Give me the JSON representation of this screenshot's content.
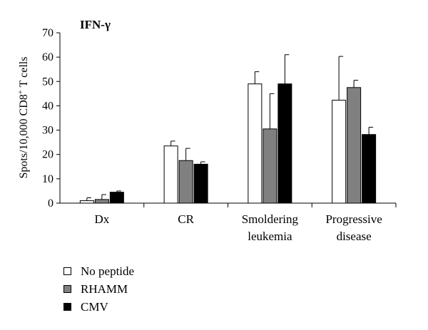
{
  "chart_data": {
    "type": "bar",
    "title": "IFN-γ",
    "ylabel": "Spots/10,000 CD8+ T cells",
    "ylabel_main": "Spots/10,000 CD8",
    "ylabel_sup": "+",
    "ylabel_tail": " T cells",
    "ylim": [
      0,
      70
    ],
    "yticks": [
      0,
      10,
      20,
      30,
      40,
      50,
      60,
      70
    ],
    "grid": false,
    "legend_position": "bottom-left",
    "categories": [
      [
        "Dx"
      ],
      [
        "CR"
      ],
      [
        "Smoldering",
        "leukemia"
      ],
      [
        "Progressive",
        "disease"
      ]
    ],
    "series": [
      {
        "name": "No peptide",
        "color": "#ffffff",
        "values": [
          1,
          23.5,
          49,
          42.3
        ],
        "errors": [
          1.2,
          2,
          5,
          18
        ]
      },
      {
        "name": "RHAMM",
        "color": "#808080",
        "values": [
          1.5,
          17.5,
          30.5,
          47.5
        ],
        "errors": [
          2,
          5,
          14.5,
          3
        ]
      },
      {
        "name": "CMV",
        "color": "#000000",
        "values": [
          4.5,
          16,
          49,
          28.2
        ],
        "errors": [
          0.5,
          1,
          12,
          3
        ]
      }
    ]
  }
}
